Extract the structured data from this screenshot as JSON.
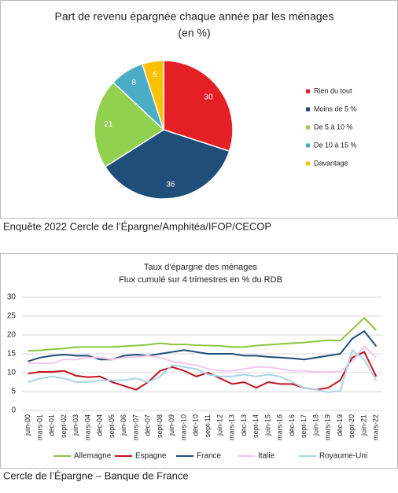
{
  "chart_data": [
    {
      "type": "pie",
      "title": "Part de revenu épargnée chaque année par les ménages",
      "subtitle": "(en %)",
      "categories": [
        "Rien du tout",
        "Moins de 5 %",
        "De 5 à 10 %",
        "De 10 à 15 %",
        "Davantage"
      ],
      "values": [
        30,
        36,
        21,
        8,
        5
      ],
      "colors": [
        "#e41f26",
        "#1f4e79",
        "#92d050",
        "#4bacc6",
        "#ffc000"
      ],
      "legend": "right"
    },
    {
      "type": "line",
      "title": "Taux d'épargne des ménages",
      "subtitle": "Flux cumulé sur 4 trimestres en % du RDB",
      "categories": [
        "juin-00",
        "mars-01",
        "déc-01",
        "sept-02",
        "juin-03",
        "mars-04",
        "déc-04",
        "sept-05",
        "juin-06",
        "mars-07",
        "déc-07",
        "sept-08",
        "juin-09",
        "mars-10",
        "déc-10",
        "sept-11",
        "juin-12",
        "mars-13",
        "déc-13",
        "sept-14",
        "juin-15",
        "mars-16",
        "déc-16",
        "sept-17",
        "juin-18",
        "mars-19",
        "déc-19",
        "sept-20",
        "juin-21",
        "mars-22"
      ],
      "series": [
        {
          "name": "Allemagne",
          "color": "#8cc63f",
          "values": [
            15.8,
            15.9,
            16.2,
            16.4,
            16.8,
            16.8,
            16.8,
            16.8,
            17.0,
            17.2,
            17.4,
            17.8,
            17.5,
            17.5,
            17.3,
            17.2,
            17.1,
            16.8,
            16.8,
            17.2,
            17.4,
            17.6,
            17.8,
            18.0,
            18.3,
            18.6,
            18.5,
            21.5,
            24.5,
            21.2
          ]
        },
        {
          "name": "Espagne",
          "color": "#c0141c",
          "values": [
            9.8,
            10.2,
            10.2,
            10.5,
            9.2,
            8.8,
            9.0,
            7.5,
            6.5,
            5.5,
            7.5,
            10.5,
            11.5,
            10.5,
            9.0,
            10.0,
            8.5,
            7.0,
            7.5,
            6.0,
            7.5,
            7.0,
            7.0,
            6.0,
            5.5,
            6.0,
            8.0,
            14.0,
            15.5,
            9.0
          ]
        },
        {
          "name": "France",
          "color": "#1f4e79",
          "values": [
            13.0,
            14.0,
            14.5,
            14.8,
            14.5,
            14.5,
            13.5,
            13.5,
            14.5,
            14.8,
            14.5,
            15.0,
            15.5,
            16.0,
            15.5,
            15.0,
            15.0,
            15.0,
            14.5,
            14.5,
            14.2,
            14.0,
            13.8,
            13.5,
            14.0,
            14.5,
            15.0,
            19.0,
            21.0,
            17.0
          ]
        },
        {
          "name": "Italie",
          "color": "#f4c6ee",
          "values": [
            12.5,
            12.5,
            12.5,
            13.5,
            13.5,
            14.0,
            14.0,
            13.5,
            14.0,
            14.2,
            14.5,
            14.0,
            13.0,
            12.5,
            12.0,
            11.0,
            10.5,
            10.5,
            11.0,
            11.5,
            11.5,
            11.0,
            10.5,
            10.5,
            10.2,
            10.2,
            10.3,
            13.0,
            17.0,
            14.0
          ]
        },
        {
          "name": "Royaume-Uni",
          "color": "#a9d4e6",
          "values": [
            7.5,
            8.5,
            9.0,
            8.5,
            7.5,
            7.5,
            8.0,
            8.0,
            8.0,
            8.5,
            7.5,
            9.0,
            12.0,
            11.5,
            11.0,
            9.5,
            9.0,
            9.0,
            9.5,
            9.0,
            9.5,
            9.0,
            7.5,
            6.0,
            5.5,
            4.8,
            5.2,
            16.0,
            13.5,
            8.0
          ]
        }
      ],
      "ylim": [
        0,
        30
      ],
      "yticks": [
        0,
        5,
        10,
        15,
        20,
        25,
        30
      ],
      "grid": true,
      "legend": "bottom"
    }
  ],
  "captions": [
    "Enquête 2022 Cercle de l’Épargne/Amphitéa/IFOP/CECOP",
    "Cercle de l’Épargne – Banque de France"
  ]
}
